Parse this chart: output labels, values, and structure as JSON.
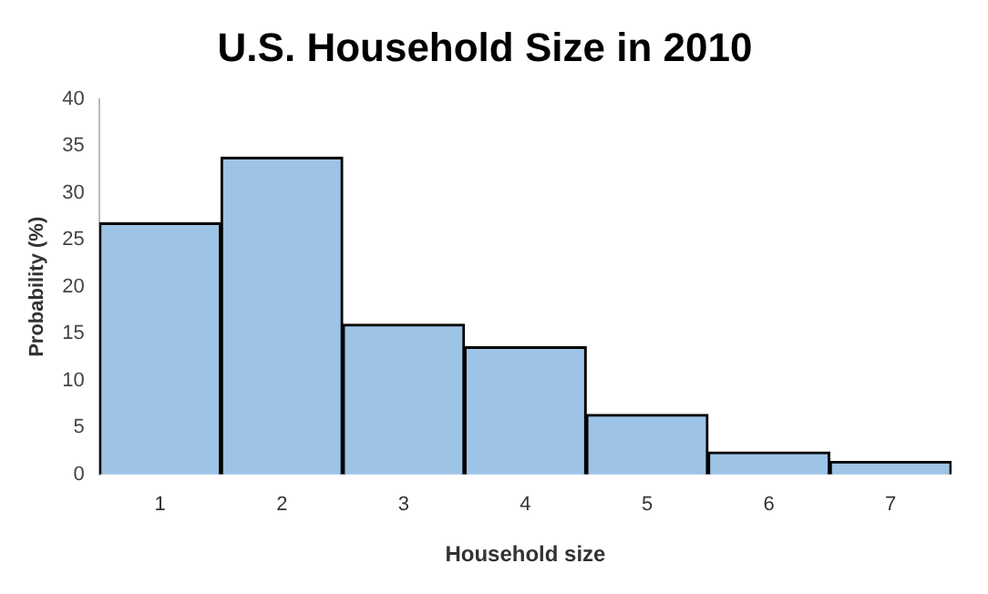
{
  "chart_data": {
    "type": "bar",
    "title": "U.S. Household Size in 2010",
    "xlabel": "Household size",
    "ylabel": "Probability (%)",
    "categories": [
      "1",
      "2",
      "3",
      "4",
      "5",
      "6",
      "7"
    ],
    "values": [
      26.8,
      33.8,
      16.0,
      13.6,
      6.4,
      2.4,
      1.4
    ],
    "color": "#9dc3e6",
    "ylim": [
      0,
      40
    ],
    "yticks": [
      0,
      5,
      10,
      15,
      20,
      25,
      30,
      35,
      40
    ],
    "grid": false,
    "legend": false
  }
}
